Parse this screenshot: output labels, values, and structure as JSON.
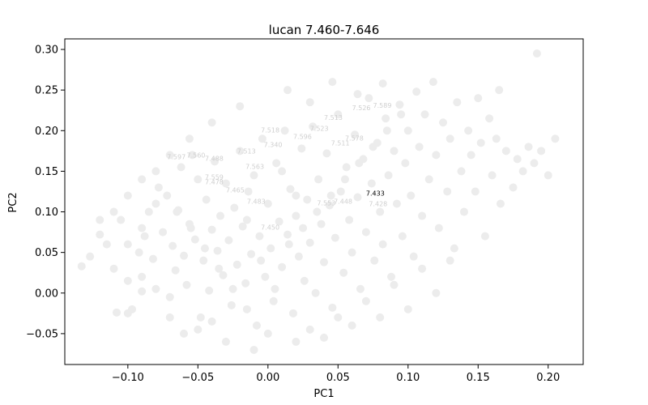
{
  "chart_data": {
    "type": "scatter",
    "title": "lucan 7.460-7.646",
    "xlabel": "PC1",
    "ylabel": "PC2",
    "xlim": [
      -0.145,
      0.225
    ],
    "ylim": [
      -0.088,
      0.313
    ],
    "xticks": [
      -0.1,
      -0.05,
      0.0,
      0.05,
      0.1,
      0.15,
      0.2
    ],
    "xtick_labels": [
      "−0.10",
      "−0.05",
      "0.00",
      "0.05",
      "0.10",
      "0.15",
      "0.20"
    ],
    "yticks": [
      -0.05,
      0.0,
      0.05,
      0.1,
      0.15,
      0.2,
      0.25,
      0.3
    ],
    "ytick_labels": [
      "−0.05",
      "0.00",
      "0.05",
      "0.10",
      "0.15",
      "0.20",
      "0.25",
      "0.30"
    ],
    "point_color": "#ececec",
    "highlight_color": "#000000",
    "label_color": "#cfcfcf",
    "grid": false,
    "points": [
      [
        -0.133,
        0.033
      ],
      [
        -0.127,
        0.045
      ],
      [
        -0.12,
        0.072
      ],
      [
        -0.115,
        0.06
      ],
      [
        -0.11,
        0.03
      ],
      [
        -0.105,
        0.09
      ],
      [
        -0.1,
        0.015
      ],
      [
        -0.108,
        -0.024
      ],
      [
        -0.097,
        -0.02
      ],
      [
        -0.092,
        0.05
      ],
      [
        -0.09,
        0.02
      ],
      [
        -0.088,
        0.07
      ],
      [
        -0.085,
        0.1
      ],
      [
        -0.082,
        0.042
      ],
      [
        -0.08,
        0.005
      ],
      [
        -0.078,
        0.13
      ],
      [
        -0.075,
        0.075
      ],
      [
        -0.072,
        0.12
      ],
      [
        -0.07,
        -0.005
      ],
      [
        -0.068,
        0.058
      ],
      [
        -0.066,
        0.028
      ],
      [
        -0.064,
        0.102
      ],
      [
        -0.062,
        0.155
      ],
      [
        -0.06,
        0.046
      ],
      [
        -0.058,
        0.01
      ],
      [
        -0.056,
        0.085
      ],
      [
        -0.054,
        0.17
      ],
      [
        -0.052,
        0.066
      ],
      [
        -0.05,
        0.14
      ],
      [
        -0.048,
        -0.03
      ],
      [
        -0.046,
        0.04
      ],
      [
        -0.044,
        0.115
      ],
      [
        -0.042,
        0.003
      ],
      [
        -0.04,
        0.078
      ],
      [
        -0.038,
        0.162
      ],
      [
        -0.036,
        0.052
      ],
      [
        -0.034,
        0.095
      ],
      [
        -0.032,
        0.022
      ],
      [
        -0.03,
        0.135
      ],
      [
        -0.028,
        0.065
      ],
      [
        -0.026,
        -0.015
      ],
      [
        -0.024,
        0.105
      ],
      [
        -0.022,
        0.035
      ],
      [
        -0.02,
        0.175
      ],
      [
        -0.018,
        0.082
      ],
      [
        -0.016,
        0.012
      ],
      [
        -0.014,
        0.125
      ],
      [
        -0.012,
        0.048
      ],
      [
        -0.01,
        0.145
      ],
      [
        -0.008,
        -0.04
      ],
      [
        -0.006,
        0.07
      ],
      [
        -0.004,
        0.19
      ],
      [
        -0.002,
        0.02
      ],
      [
        0.0,
        0.11
      ],
      [
        0.002,
        0.055
      ],
      [
        0.004,
        -0.01
      ],
      [
        0.006,
        0.16
      ],
      [
        0.008,
        0.088
      ],
      [
        0.01,
        0.032
      ],
      [
        0.012,
        0.2
      ],
      [
        0.014,
        0.072
      ],
      [
        0.016,
        0.128
      ],
      [
        0.018,
        -0.025
      ],
      [
        0.02,
        0.095
      ],
      [
        0.022,
        0.045
      ],
      [
        0.024,
        0.178
      ],
      [
        0.026,
        0.015
      ],
      [
        0.028,
        0.115
      ],
      [
        0.03,
        0.062
      ],
      [
        0.032,
        0.205
      ],
      [
        0.034,
        0.0
      ],
      [
        0.036,
        0.14
      ],
      [
        0.038,
        0.085
      ],
      [
        0.04,
        0.038
      ],
      [
        0.042,
        0.172
      ],
      [
        0.044,
        0.108
      ],
      [
        0.046,
        -0.018
      ],
      [
        0.048,
        0.068
      ],
      [
        0.05,
        0.22
      ],
      [
        0.052,
        0.125
      ],
      [
        0.054,
        0.025
      ],
      [
        0.056,
        0.155
      ],
      [
        0.058,
        0.09
      ],
      [
        0.06,
        0.05
      ],
      [
        0.062,
        0.195
      ],
      [
        0.064,
        0.118
      ],
      [
        0.066,
        0.005
      ],
      [
        0.068,
        0.165
      ],
      [
        0.07,
        0.075
      ],
      [
        0.072,
        0.24
      ],
      [
        0.074,
        0.135
      ],
      [
        0.076,
        0.04
      ],
      [
        0.078,
        0.185
      ],
      [
        0.08,
        0.1
      ],
      [
        0.082,
        0.06
      ],
      [
        0.084,
        0.215
      ],
      [
        0.086,
        0.145
      ],
      [
        0.088,
        0.02
      ],
      [
        0.09,
        0.175
      ],
      [
        0.092,
        0.11
      ],
      [
        0.094,
        0.232
      ],
      [
        0.096,
        0.07
      ],
      [
        0.098,
        0.16
      ],
      [
        0.1,
        0.2
      ],
      [
        0.102,
        0.12
      ],
      [
        0.104,
        0.045
      ],
      [
        0.106,
        0.248
      ],
      [
        0.108,
        0.18
      ],
      [
        0.11,
        0.095
      ],
      [
        0.112,
        0.22
      ],
      [
        0.115,
        0.14
      ],
      [
        0.118,
        0.26
      ],
      [
        0.12,
        0.17
      ],
      [
        0.122,
        0.08
      ],
      [
        0.125,
        0.21
      ],
      [
        0.128,
        0.125
      ],
      [
        0.13,
        0.19
      ],
      [
        0.133,
        0.055
      ],
      [
        0.135,
        0.235
      ],
      [
        0.138,
        0.15
      ],
      [
        0.14,
        0.1
      ],
      [
        0.143,
        0.2
      ],
      [
        0.145,
        0.17
      ],
      [
        0.148,
        0.125
      ],
      [
        0.15,
        0.24
      ],
      [
        0.152,
        0.185
      ],
      [
        0.155,
        0.07
      ],
      [
        0.158,
        0.215
      ],
      [
        0.16,
        0.145
      ],
      [
        0.163,
        0.19
      ],
      [
        0.166,
        0.11
      ],
      [
        0.17,
        0.175
      ],
      [
        0.175,
        0.13
      ],
      [
        0.178,
        0.165
      ],
      [
        0.182,
        0.15
      ],
      [
        0.186,
        0.18
      ],
      [
        0.19,
        0.16
      ],
      [
        0.195,
        0.175
      ],
      [
        0.2,
        0.145
      ],
      [
        0.205,
        0.19
      ],
      [
        0.192,
        0.295
      ],
      [
        0.165,
        0.25
      ],
      [
        0.13,
        0.04
      ],
      [
        0.12,
        0.0
      ],
      [
        0.1,
        -0.02
      ],
      [
        0.08,
        -0.03
      ],
      [
        0.06,
        -0.04
      ],
      [
        0.04,
        -0.055
      ],
      [
        0.02,
        -0.06
      ],
      [
        -0.01,
        -0.07
      ],
      [
        -0.03,
        -0.06
      ],
      [
        -0.05,
        -0.045
      ],
      [
        -0.07,
        -0.03
      ],
      [
        -0.09,
        0.002
      ],
      [
        -0.1,
        -0.025
      ],
      [
        -0.06,
        -0.05
      ],
      [
        -0.04,
        -0.035
      ],
      [
        0.0,
        -0.05
      ],
      [
        0.03,
        -0.045
      ],
      [
        0.05,
        -0.03
      ],
      [
        0.07,
        -0.01
      ],
      [
        0.09,
        0.01
      ],
      [
        0.11,
        0.03
      ],
      [
        0.014,
        0.25
      ],
      [
        0.03,
        0.235
      ],
      [
        0.046,
        0.26
      ],
      [
        0.064,
        0.245
      ],
      [
        0.082,
        0.258
      ],
      [
        -0.02,
        0.23
      ],
      [
        -0.04,
        0.21
      ],
      [
        -0.056,
        0.19
      ],
      [
        -0.07,
        0.17
      ],
      [
        -0.08,
        0.15
      ],
      [
        -0.09,
        0.14
      ],
      [
        -0.1,
        0.12
      ],
      [
        -0.11,
        0.1
      ],
      [
        -0.12,
        0.09
      ],
      [
        -0.1,
        0.06
      ],
      [
        -0.09,
        0.08
      ],
      [
        -0.08,
        0.11
      ],
      [
        0.005,
        0.005
      ],
      [
        0.015,
        0.06
      ],
      [
        0.025,
        0.08
      ],
      [
        0.035,
        0.1
      ],
      [
        0.045,
        0.12
      ],
      [
        0.055,
        0.14
      ],
      [
        0.065,
        0.16
      ],
      [
        0.075,
        0.18
      ],
      [
        0.085,
        0.2
      ],
      [
        0.095,
        0.22
      ],
      [
        -0.015,
        -0.02
      ],
      [
        -0.025,
        0.005
      ],
      [
        -0.035,
        0.03
      ],
      [
        -0.045,
        0.055
      ],
      [
        -0.055,
        0.08
      ],
      [
        -0.065,
        0.1
      ],
      [
        -0.015,
        0.09
      ],
      [
        -0.005,
        0.04
      ],
      [
        0.01,
        0.15
      ],
      [
        0.02,
        0.12
      ]
    ],
    "point_labels": [
      {
        "text": "7.526",
        "x": 0.06,
        "y": 0.225,
        "highlight": false
      },
      {
        "text": "7.589",
        "x": 0.075,
        "y": 0.228,
        "highlight": false
      },
      {
        "text": "7.513",
        "x": 0.04,
        "y": 0.213,
        "highlight": false
      },
      {
        "text": "7.518",
        "x": -0.005,
        "y": 0.198,
        "highlight": false
      },
      {
        "text": "7.523",
        "x": 0.03,
        "y": 0.2,
        "highlight": false
      },
      {
        "text": "7.596",
        "x": 0.018,
        "y": 0.19,
        "highlight": false
      },
      {
        "text": "7.578",
        "x": 0.055,
        "y": 0.188,
        "highlight": false
      },
      {
        "text": "7.511",
        "x": 0.045,
        "y": 0.182,
        "highlight": false
      },
      {
        "text": "7.340",
        "x": -0.003,
        "y": 0.18,
        "highlight": false
      },
      {
        "text": "7.513",
        "x": -0.022,
        "y": 0.172,
        "highlight": false
      },
      {
        "text": "7.597",
        "x": -0.072,
        "y": 0.165,
        "highlight": false
      },
      {
        "text": "7.560",
        "x": -0.058,
        "y": 0.167,
        "highlight": false
      },
      {
        "text": "7.488",
        "x": -0.045,
        "y": 0.163,
        "highlight": false
      },
      {
        "text": "7.563",
        "x": -0.016,
        "y": 0.153,
        "highlight": false
      },
      {
        "text": "7.559",
        "x": -0.045,
        "y": 0.14,
        "highlight": false
      },
      {
        "text": "7.478",
        "x": -0.045,
        "y": 0.134,
        "highlight": false
      },
      {
        "text": "7.465",
        "x": -0.03,
        "y": 0.124,
        "highlight": false
      },
      {
        "text": "7.483",
        "x": -0.015,
        "y": 0.11,
        "highlight": false
      },
      {
        "text": "7.553",
        "x": 0.035,
        "y": 0.108,
        "highlight": false
      },
      {
        "text": "7.448",
        "x": 0.047,
        "y": 0.11,
        "highlight": false
      },
      {
        "text": "7.428",
        "x": 0.072,
        "y": 0.107,
        "highlight": false
      },
      {
        "text": "7.450",
        "x": -0.005,
        "y": 0.078,
        "highlight": false
      },
      {
        "text": "7.433",
        "x": 0.07,
        "y": 0.12,
        "highlight": true
      }
    ]
  }
}
